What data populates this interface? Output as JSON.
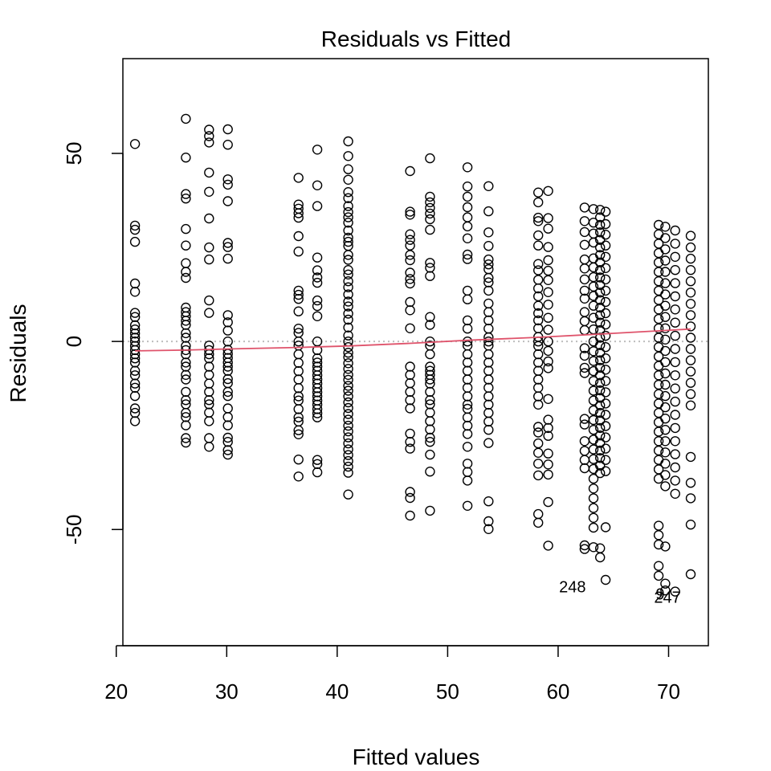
{
  "chart_data": {
    "type": "scatter",
    "title": "Residuals vs Fitted",
    "xlabel": "Fitted values",
    "ylabel": "Residuals",
    "xlim": [
      20.6,
      73.6
    ],
    "ylim": [
      -80.9,
      75.2
    ],
    "xticks": [
      20,
      30,
      40,
      50,
      60,
      70
    ],
    "yticks": [
      -50,
      0,
      50
    ],
    "reference_line": {
      "y": 0,
      "style": "dotted",
      "color": "#bdbdbd"
    },
    "smoother": {
      "color": "#DF536B",
      "x": [
        21.7,
        26.3,
        30.1,
        36.5,
        41.0,
        46.6,
        51.8,
        58.2,
        64.0,
        69.5,
        72.0
      ],
      "y": [
        -2.5,
        -2.3,
        -2.0,
        -1.6,
        -1.2,
        -0.5,
        0.3,
        1.1,
        2.0,
        2.9,
        3.3
      ]
    },
    "point_color": "#000000",
    "columns": [
      {
        "x": 21.7,
        "y": [
          52.5,
          30.8,
          29.7,
          26.5,
          15.4,
          13.2,
          7.6,
          6.5,
          4.3,
          3.2,
          2.1,
          1.0,
          0.0,
          -1.2,
          -2.3,
          -3.4,
          -4.5,
          -5.6,
          -7.8,
          -9.0,
          -11.2,
          -12.3,
          -14.5,
          -17.8,
          -19.0,
          -21.2
        ]
      },
      {
        "x": 26.3,
        "y": [
          59.2,
          48.9,
          39.2,
          38.0,
          29.9,
          25.5,
          20.8,
          18.5,
          16.9,
          9.0,
          7.8,
          6.7,
          5.5,
          4.4,
          2.2,
          1.0,
          -1.2,
          -2.3,
          -3.4,
          -5.6,
          -6.7,
          -8.9,
          -10.1,
          -13.4,
          -15.6,
          -16.7,
          -19.0,
          -20.1,
          -22.3,
          -25.7,
          -26.9
        ]
      },
      {
        "x": 28.4,
        "y": [
          56.3,
          54.6,
          52.9,
          44.9,
          39.8,
          32.7,
          25.0,
          21.8,
          10.9,
          7.6,
          -1.1,
          -2.3,
          -3.4,
          -4.5,
          -6.7,
          -8.9,
          -11.2,
          -13.4,
          -15.6,
          -16.7,
          -18.9,
          -21.2,
          -25.7,
          -28.0
        ]
      },
      {
        "x": 30.1,
        "y": [
          56.4,
          52.3,
          43.1,
          41.7,
          37.3,
          26.2,
          25.1,
          22.0,
          7.0,
          5.1,
          2.9,
          0.0,
          -2.2,
          -3.3,
          -4.4,
          -5.6,
          -6.7,
          -7.8,
          -10.0,
          -11.1,
          -13.4,
          -14.5,
          -17.8,
          -20.1,
          -22.3,
          -25.6,
          -26.7,
          -28.9,
          -30.1
        ]
      },
      {
        "x": 36.5,
        "y": [
          43.5,
          36.4,
          35.3,
          34.1,
          32.9,
          28.0,
          23.9,
          13.5,
          12.4,
          11.3,
          8.0,
          3.4,
          2.3,
          0.0,
          -1.1,
          -3.4,
          -5.7,
          -7.9,
          -10.1,
          -12.4,
          -14.6,
          -15.7,
          -18.0,
          -20.2,
          -21.3,
          -23.6,
          -24.7,
          -31.4,
          -35.9
        ]
      },
      {
        "x": 38.2,
        "y": [
          51.0,
          41.5,
          36.0,
          22.3,
          18.9,
          17.0,
          15.6,
          10.9,
          9.4,
          6.7,
          0.0,
          -2.3,
          -4.5,
          -5.6,
          -6.7,
          -7.8,
          -9.0,
          -10.1,
          -11.2,
          -12.4,
          -13.5,
          -14.6,
          -15.7,
          -16.8,
          -18.0,
          -19.1,
          -20.2,
          -31.5,
          -32.6,
          -34.8
        ]
      },
      {
        "x": 41.0,
        "y": [
          53.2,
          49.3,
          45.8,
          43.0,
          39.7,
          38.1,
          36.0,
          34.4,
          33.0,
          31.6,
          29.5,
          27.6,
          26.5,
          25.4,
          23.0,
          21.7,
          19.0,
          17.8,
          16.0,
          14.4,
          12.5,
          10.6,
          9.3,
          7.4,
          5.8,
          3.7,
          1.6,
          0.0,
          -1.5,
          -3.0,
          -4.2,
          -5.8,
          -7.3,
          -8.9,
          -10.2,
          -11.8,
          -13.1,
          -14.6,
          -16.2,
          -17.7,
          -19.3,
          -20.8,
          -22.4,
          -23.9,
          -25.5,
          -27.1,
          -28.7,
          -30.2,
          -31.8,
          -33.3,
          -34.9,
          -40.7
        ]
      },
      {
        "x": 46.6,
        "y": [
          45.3,
          34.5,
          33.7,
          28.5,
          27.0,
          25.5,
          23.0,
          21.6,
          18.3,
          16.6,
          15.4,
          10.5,
          8.3,
          3.5,
          -6.7,
          -8.9,
          -11.1,
          -13.4,
          -15.6,
          -17.8,
          -24.5,
          -26.7,
          -28.5,
          -40.0,
          -41.6,
          -46.3
        ]
      },
      {
        "x": 48.4,
        "y": [
          48.7,
          38.5,
          37.0,
          35.5,
          34.0,
          32.5,
          29.7,
          20.9,
          19.6,
          17.4,
          6.5,
          4.4,
          0.0,
          -1.1,
          -3.4,
          -6.7,
          -7.8,
          -8.9,
          -10.1,
          -11.2,
          -13.4,
          -15.6,
          -16.7,
          -18.9,
          -21.2,
          -23.4,
          -25.6,
          -26.7,
          -30.1,
          -34.6,
          -45.0
        ]
      },
      {
        "x": 51.8,
        "y": [
          46.3,
          41.2,
          38.5,
          35.7,
          33.0,
          30.6,
          27.4,
          23.1,
          21.9,
          13.5,
          11.2,
          5.6,
          3.4,
          0.0,
          -1.1,
          -3.4,
          -5.6,
          -7.8,
          -10.1,
          -12.3,
          -14.6,
          -16.8,
          -17.9,
          -20.2,
          -22.4,
          -24.6,
          -28.0,
          -32.5,
          -34.7,
          -37.0,
          -43.7
        ]
      },
      {
        "x": 53.7,
        "y": [
          41.3,
          34.6,
          29.0,
          25.4,
          21.8,
          20.5,
          19.2,
          16.9,
          15.7,
          13.5,
          10.1,
          7.8,
          5.6,
          3.4,
          1.1,
          0.0,
          -1.1,
          -3.4,
          -5.6,
          -7.8,
          -10.1,
          -12.3,
          -14.6,
          -16.8,
          -19.0,
          -21.3,
          -23.5,
          -27.0,
          -42.5,
          -47.8,
          -49.9
        ]
      },
      {
        "x": 58.2,
        "y": [
          39.6,
          37.0,
          32.9,
          32.0,
          28.2,
          25.5,
          20.6,
          18.9,
          16.4,
          14.1,
          12.0,
          9.5,
          7.5,
          5.6,
          3.5,
          1.2,
          0.0,
          -1.2,
          -3.4,
          -5.6,
          -7.8,
          -10.1,
          -12.3,
          -14.6,
          -16.8,
          -22.7,
          -24.2,
          -27.1,
          -29.6,
          -32.5,
          -35.6,
          -45.9,
          -48.2
        ]
      },
      {
        "x": 59.1,
        "y": [
          40.0,
          32.8,
          30.0,
          25.1,
          21.6,
          18.8,
          16.3,
          13.1,
          9.8,
          6.3,
          3.1,
          0.0,
          -2.5,
          -5.3,
          -7.1,
          -15.3,
          -20.8,
          -23.0,
          -25.1,
          -29.8,
          -32.7,
          -35.4,
          -42.7,
          -54.3
        ]
      },
      {
        "x": 62.4,
        "y": [
          35.6,
          32.0,
          29.1,
          25.7,
          21.8,
          19.4,
          16.5,
          13.5,
          11.4,
          7.8,
          5.4,
          3.0,
          -1.8,
          -3.8,
          -7.0,
          -8.4,
          -20.6,
          -22.1,
          -26.5,
          -29.1,
          -31.5,
          -33.7,
          -54.2,
          -55.2
        ]
      },
      {
        "x": 63.2,
        "y": [
          35.2,
          31.6,
          28.7,
          26.3,
          22.1,
          19.7,
          17.1,
          14.6,
          12.1,
          9.5,
          6.3,
          3.2,
          0.0,
          -2.6,
          -5.2,
          -7.9,
          -10.5,
          -13.1,
          -15.7,
          -18.3,
          -20.9,
          -23.5,
          -26.1,
          -28.7,
          -31.3,
          -33.9,
          -36.5,
          -39.1,
          -41.7,
          -44.3,
          -46.9,
          -49.5,
          -54.7
        ]
      },
      {
        "x": 63.8,
        "y": [
          35.0,
          33.0,
          31.0,
          29.0,
          27.0,
          25.0,
          23.0,
          21.0,
          19.0,
          17.0,
          15.0,
          13.0,
          11.0,
          9.0,
          7.0,
          5.0,
          3.0,
          1.0,
          -1.0,
          -3.0,
          -5.0,
          -7.0,
          -9.0,
          -11.0,
          -13.0,
          -15.0,
          -17.0,
          -19.0,
          -21.0,
          -23.0,
          -25.0,
          -27.0,
          -29.0,
          -31.0,
          -33.0,
          -35.0,
          -55.0,
          -57.4
        ]
      },
      {
        "x": 64.3,
        "y": [
          34.5,
          31.2,
          28.4,
          25.5,
          22.5,
          19.5,
          16.5,
          13.5,
          10.5,
          7.5,
          4.5,
          1.5,
          -1.5,
          -4.5,
          -7.5,
          -10.5,
          -13.5,
          -16.5,
          -19.5,
          -22.5,
          -25.5,
          -28.5,
          -31.5,
          -34.5,
          -49.4,
          -63.4
        ]
      },
      {
        "x": 69.1,
        "y": [
          31.0,
          28.5,
          26.0,
          23.5,
          21.0,
          18.5,
          16.0,
          13.5,
          11.0,
          8.5,
          6.0,
          3.5,
          1.0,
          -1.5,
          -4.0,
          -6.5,
          -9.0,
          -11.5,
          -14.0,
          -16.5,
          -19.0,
          -21.5,
          -24.0,
          -26.5,
          -29.0,
          -31.5,
          -34.0,
          -36.5,
          -49.0,
          -51.5,
          -54.0,
          -59.7,
          -62.3
        ]
      },
      {
        "x": 69.7,
        "y": [
          30.5,
          27.5,
          24.5,
          21.5,
          18.5,
          15.5,
          12.5,
          9.5,
          6.5,
          3.5,
          0.5,
          -2.5,
          -5.5,
          -8.5,
          -11.5,
          -14.5,
          -17.5,
          -20.5,
          -23.5,
          -26.5,
          -29.5,
          -32.5,
          -35.5,
          -38.5,
          -54.5,
          -64.4,
          -66.2
        ]
      },
      {
        "x": 70.6,
        "y": [
          29.5,
          26.0,
          22.5,
          19.0,
          15.5,
          12.0,
          8.5,
          5.0,
          1.5,
          -2.0,
          -5.5,
          -9.0,
          -12.5,
          -16.0,
          -19.5,
          -23.0,
          -26.5,
          -30.0,
          -33.5,
          -37.0,
          -40.5,
          -66.5
        ]
      },
      {
        "x": 72.0,
        "y": [
          28.1,
          25.0,
          22.0,
          19.0,
          16.0,
          13.0,
          10.0,
          7.0,
          4.0,
          1.0,
          -2.0,
          -5.0,
          -8.0,
          -11.0,
          -14.0,
          -17.0,
          -30.7,
          -37.6,
          -41.7,
          -48.7,
          -61.9
        ]
      }
    ],
    "annotations": [
      {
        "label": "248",
        "x": 64.3,
        "y": -65.0
      },
      {
        "label": "247",
        "x": 69.7,
        "y": -66.5
      },
      {
        "label": "9",
        "x": 69.7,
        "y": -66.5
      }
    ]
  }
}
